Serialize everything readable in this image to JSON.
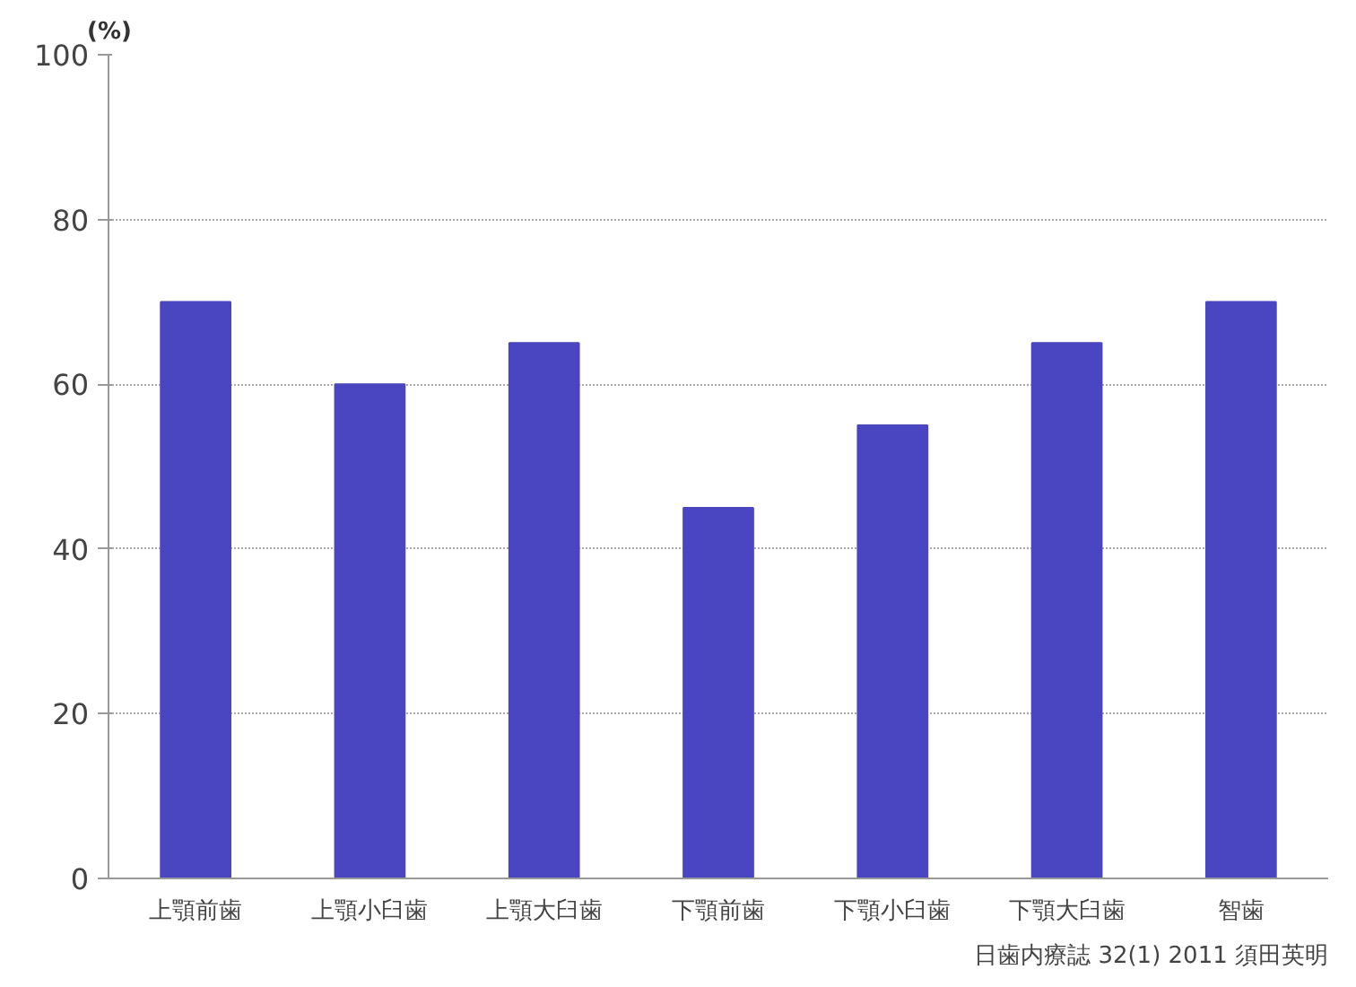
{
  "chart_data": {
    "type": "bar",
    "ylabel": "(%)",
    "categories": [
      "上顎前歯",
      "上顎小臼歯",
      "上顎大臼歯",
      "下顎前歯",
      "下顎小臼歯",
      "下顎大臼歯",
      "智歯"
    ],
    "values": [
      70,
      60,
      65,
      45,
      55,
      65,
      70
    ],
    "color": "#4a45c0",
    "ylim": [
      0,
      100
    ],
    "yticks": [
      0,
      20,
      40,
      60,
      80,
      100
    ],
    "grid": "y",
    "annotations": [
      "日歯内療誌 32(1) 2011 須田英明"
    ]
  }
}
